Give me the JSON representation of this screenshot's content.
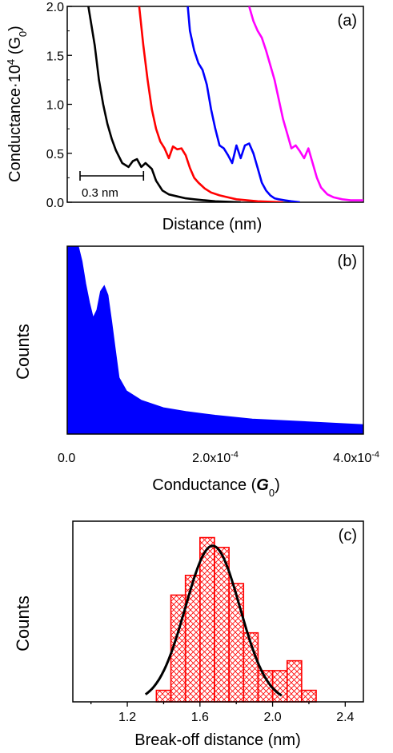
{
  "chart_data": [
    {
      "type": "line",
      "panel_label": "(a)",
      "xlabel": "Distance (nm)",
      "ylabel_main": "Conductance·10",
      "ylabel_sup": "4",
      "ylabel_paren_open": " (G",
      "ylabel_sub": "0",
      "ylabel_paren_close": ")",
      "ylim": [
        0,
        2.0
      ],
      "xlim": [
        0,
        1.4
      ],
      "yticks": [
        0.0,
        0.5,
        1.0,
        1.5,
        2.0
      ],
      "ytick_labels": [
        "0.0",
        "0.5",
        "1.0",
        "1.5",
        "2.0"
      ],
      "scale_bar_label": "0.3 nm",
      "scale_bar_length_nm": 0.3,
      "series": [
        {
          "color": "#000000",
          "x": [
            0.1,
            0.13,
            0.15,
            0.17,
            0.19,
            0.21,
            0.23,
            0.26,
            0.29,
            0.31,
            0.33,
            0.35,
            0.37,
            0.4,
            0.42,
            0.45,
            0.48,
            0.52,
            0.56,
            0.6,
            0.65,
            0.7,
            0.76,
            0.82
          ],
          "y": [
            2.0,
            1.6,
            1.25,
            1.0,
            0.8,
            0.65,
            0.53,
            0.4,
            0.36,
            0.42,
            0.44,
            0.36,
            0.4,
            0.34,
            0.22,
            0.12,
            0.08,
            0.06,
            0.04,
            0.03,
            0.02,
            0.01,
            0.005,
            0.0
          ]
        },
        {
          "color": "#ff0000",
          "x": [
            0.34,
            0.36,
            0.38,
            0.4,
            0.42,
            0.44,
            0.46,
            0.48,
            0.5,
            0.52,
            0.54,
            0.56,
            0.58,
            0.6,
            0.62,
            0.65,
            0.68,
            0.72,
            0.76,
            0.8,
            0.85,
            0.9,
            0.96,
            1.02
          ],
          "y": [
            2.0,
            1.6,
            1.25,
            0.95,
            0.75,
            0.62,
            0.55,
            0.45,
            0.57,
            0.54,
            0.55,
            0.48,
            0.35,
            0.25,
            0.2,
            0.14,
            0.1,
            0.07,
            0.05,
            0.03,
            0.02,
            0.01,
            0.005,
            0.0
          ]
        },
        {
          "color": "#0000ff",
          "x": [
            0.57,
            0.58,
            0.6,
            0.62,
            0.64,
            0.66,
            0.68,
            0.7,
            0.72,
            0.74,
            0.76,
            0.78,
            0.8,
            0.82,
            0.84,
            0.86,
            0.88,
            0.9,
            0.92,
            0.94,
            0.96,
            0.98,
            1.0,
            1.03,
            1.06,
            1.1
          ],
          "y": [
            2.0,
            1.75,
            1.55,
            1.42,
            1.35,
            1.2,
            0.95,
            0.75,
            0.58,
            0.55,
            0.48,
            0.4,
            0.58,
            0.45,
            0.58,
            0.6,
            0.5,
            0.35,
            0.2,
            0.12,
            0.07,
            0.04,
            0.03,
            0.02,
            0.01,
            0.0
          ]
        },
        {
          "color": "#ff00ff",
          "x": [
            0.86,
            0.88,
            0.9,
            0.92,
            0.94,
            0.96,
            0.98,
            1.0,
            1.02,
            1.04,
            1.06,
            1.08,
            1.1,
            1.12,
            1.14,
            1.16,
            1.18,
            1.2,
            1.23,
            1.26,
            1.3,
            1.34,
            1.38,
            1.4
          ],
          "y": [
            2.0,
            1.85,
            1.75,
            1.68,
            1.55,
            1.4,
            1.25,
            1.05,
            0.85,
            0.7,
            0.55,
            0.58,
            0.52,
            0.45,
            0.55,
            0.4,
            0.25,
            0.15,
            0.08,
            0.05,
            0.03,
            0.02,
            0.02,
            0.02
          ]
        }
      ]
    },
    {
      "type": "area",
      "panel_label": "(b)",
      "xlabel_main": "Conductance (",
      "xlabel_italic": "G",
      "xlabel_sub": "0",
      "xlabel_close": ")",
      "ylabel": "Counts",
      "xlim": [
        0,
        0.0004
      ],
      "ylim": [
        0,
        1.0
      ],
      "xtick_labels": [
        {
          "value": 0.0,
          "base": "0.0",
          "exp": ""
        },
        {
          "value": 0.0002,
          "base": "2.0x10",
          "exp": "-4"
        },
        {
          "value": 0.0004,
          "base": "4.0x10",
          "exp": "-4"
        }
      ],
      "color": "#0000ff",
      "x": [
        0.0,
        1.5e-05,
        2e-05,
        2.5e-05,
        3e-05,
        3.5e-05,
        4e-05,
        4.5e-05,
        5e-05,
        5.5e-05,
        6e-05,
        6.5e-05,
        7e-05,
        8e-05,
        0.0001,
        0.00013,
        0.00016,
        0.0002,
        0.00025,
        0.0003,
        0.00035,
        0.0004
      ],
      "y": [
        1.0,
        1.0,
        0.92,
        0.8,
        0.7,
        0.62,
        0.66,
        0.76,
        0.79,
        0.74,
        0.6,
        0.45,
        0.3,
        0.23,
        0.18,
        0.14,
        0.12,
        0.1,
        0.08,
        0.07,
        0.06,
        0.05
      ]
    },
    {
      "type": "bar",
      "panel_label": "(c)",
      "xlabel": "Break-off distance (nm)",
      "ylabel": "Counts",
      "xlim": [
        0.9,
        2.5
      ],
      "ylim": [
        0,
        1.1
      ],
      "xticks": [
        1.2,
        1.6,
        2.0,
        2.4
      ],
      "xtick_labels": [
        "1.2",
        "1.6",
        "2.0",
        "2.4"
      ],
      "bin_width": 0.08,
      "bin_starts": [
        1.36,
        1.44,
        1.52,
        1.6,
        1.68,
        1.76,
        1.84,
        1.92,
        2.0,
        2.08,
        2.16
      ],
      "values": [
        0.07,
        0.65,
        0.77,
        1.0,
        0.94,
        0.72,
        0.42,
        0.19,
        0.19,
        0.25,
        0.07
      ],
      "bar_edge_color": "#ff0000",
      "fit": {
        "type": "gaussian",
        "color": "#000000",
        "center": 1.67,
        "sigma": 0.15,
        "amplitude": 0.95
      }
    }
  ]
}
